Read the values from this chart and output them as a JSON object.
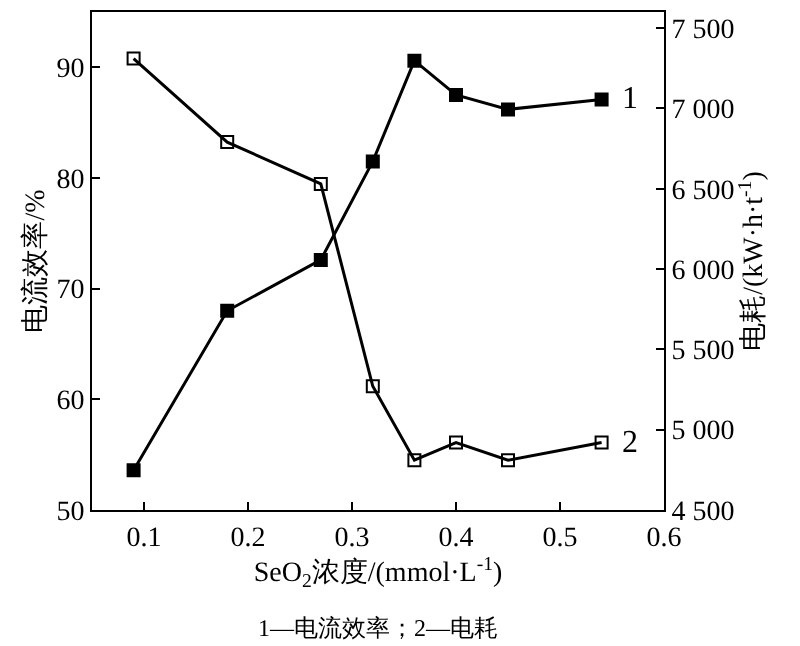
{
  "chart_data": {
    "type": "line",
    "xlabel": "SeO$_{2}$浓度/(mmol·L$^{-1}$)",
    "ylabel": "电流效率/%",
    "y2label": "电耗/(kW·h·t$^{-1}$)",
    "x": [
      0.09,
      0.18,
      0.27,
      0.32,
      0.36,
      0.4,
      0.45,
      0.54
    ],
    "series": [
      {
        "name": "1",
        "color": "#000000",
        "marker": "square",
        "values": [
          53.6,
          68,
          72.6,
          81.5,
          90.6,
          87.5,
          86.2,
          87.1
        ]
      },
      {
        "name": "2",
        "color": "#000000",
        "marker": "square-open",
        "axis": "y2",
        "values": [
          7310,
          6790,
          6530,
          5270,
          4810,
          4920,
          4810,
          4920
        ]
      }
    ],
    "xlim": [
      0.05,
      0.6
    ],
    "xticks": [
      0.1,
      0.2,
      0.3,
      0.4,
      0.5,
      0.6
    ],
    "ylim": [
      50,
      95
    ],
    "yticks": [
      50,
      60,
      70,
      80,
      90
    ],
    "y2lim": [
      4500,
      7600
    ],
    "y2ticks": [
      {
        "value": 4500,
        "label": "4 500"
      },
      {
        "value": 5000,
        "label": "5 000"
      },
      {
        "value": 5500,
        "label": "5 500"
      },
      {
        "value": 6000,
        "label": "6 000"
      },
      {
        "value": 6500,
        "label": "6 500"
      },
      {
        "value": 7000,
        "label": "7 000"
      },
      {
        "value": 7500,
        "label": "7 500"
      }
    ],
    "grid": false,
    "legend": false,
    "line_style": "solid",
    "annotations": [
      "1—电流效率；2—电耗"
    ]
  }
}
